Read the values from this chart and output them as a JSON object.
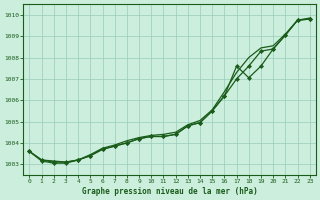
{
  "background_color": "#cceedd",
  "grid_color": "#99ccbb",
  "line_color": "#1a5c1a",
  "marker_color": "#1a5c1a",
  "xlabel": "Graphe pression niveau de la mer (hPa)",
  "ylim": [
    1002.5,
    1010.5
  ],
  "xlim": [
    -0.5,
    23.5
  ],
  "yticks": [
    1003,
    1004,
    1005,
    1006,
    1007,
    1008,
    1009,
    1010
  ],
  "xticks": [
    0,
    1,
    2,
    3,
    4,
    5,
    6,
    7,
    8,
    9,
    10,
    11,
    12,
    13,
    14,
    15,
    16,
    17,
    18,
    19,
    20,
    21,
    22,
    23
  ],
  "y_smooth": [
    1003.6,
    1003.2,
    1003.15,
    1003.1,
    1003.2,
    1003.45,
    1003.75,
    1003.9,
    1004.1,
    1004.25,
    1004.35,
    1004.4,
    1004.5,
    1004.85,
    1005.05,
    1005.55,
    1006.4,
    1007.3,
    1008.0,
    1008.45,
    1008.55,
    1009.1,
    1009.75,
    1009.85
  ],
  "y_mid": [
    1003.6,
    1003.2,
    1003.1,
    1003.1,
    1003.2,
    1003.4,
    1003.7,
    1003.85,
    1004.0,
    1004.2,
    1004.3,
    1004.3,
    1004.4,
    1004.8,
    1004.95,
    1005.5,
    1006.2,
    1007.0,
    1007.6,
    1008.3,
    1008.4,
    1009.05,
    1009.75,
    1009.8
  ],
  "y_lower": [
    1003.6,
    1003.15,
    1003.05,
    1003.05,
    1003.2,
    1003.4,
    1003.7,
    1003.85,
    1004.0,
    1004.2,
    1004.3,
    1004.3,
    1004.4,
    1004.8,
    1004.95,
    1005.5,
    1006.2,
    1007.6,
    1007.05,
    1007.6,
    1008.4,
    1009.05,
    1009.75,
    1009.8
  ]
}
